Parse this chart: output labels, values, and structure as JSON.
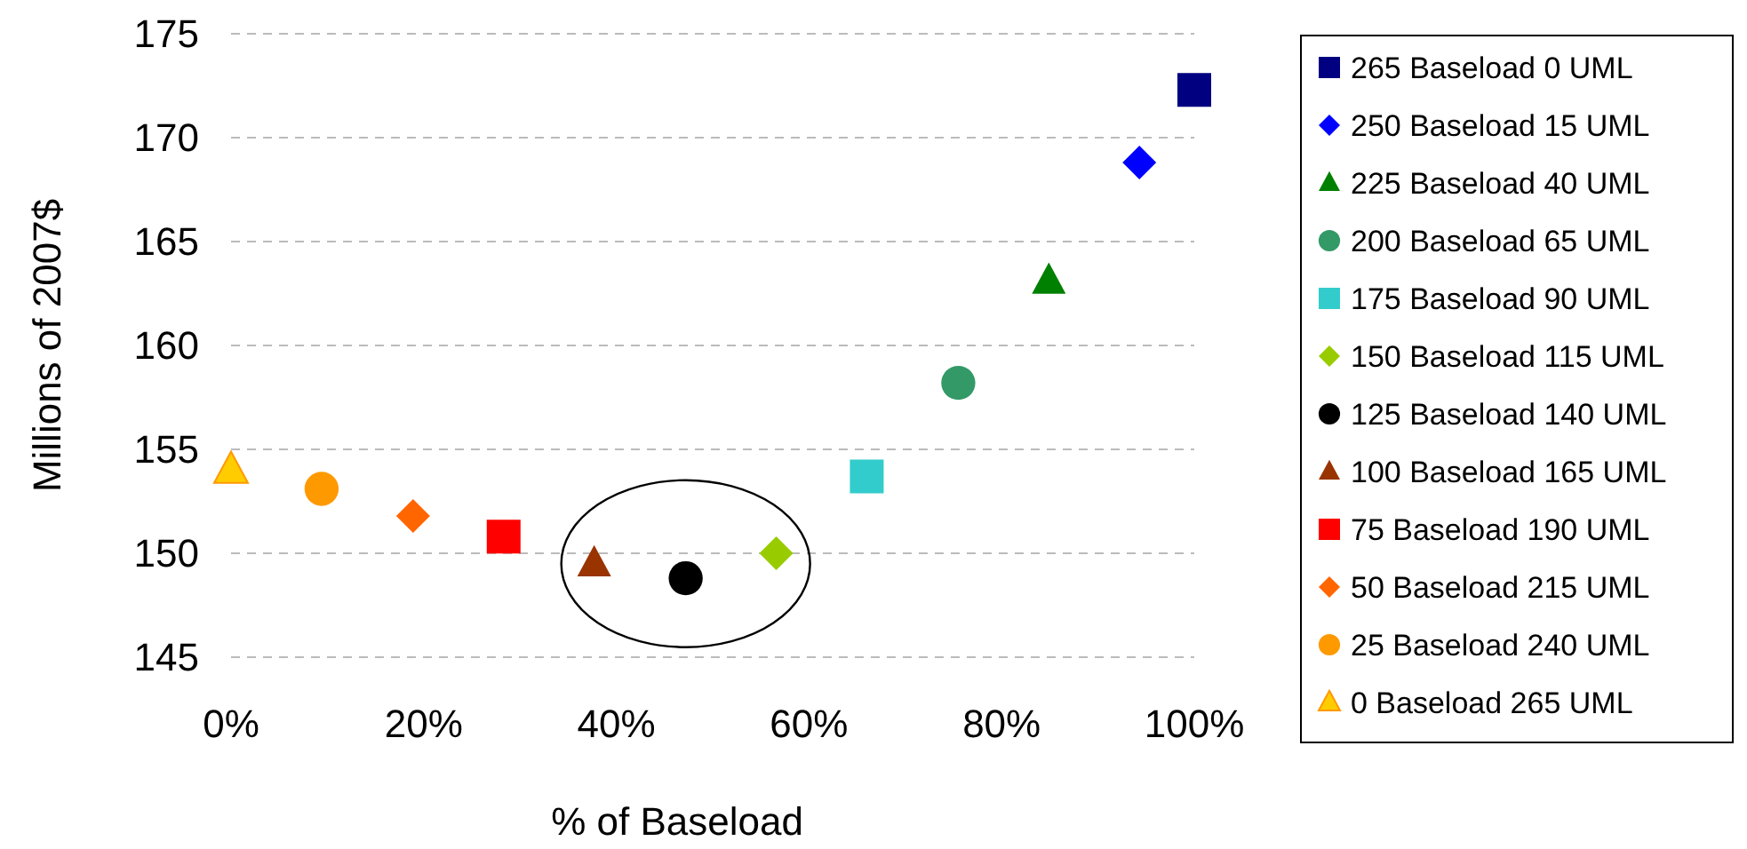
{
  "chart_data": {
    "type": "scatter",
    "xlabel": "% of Baseload",
    "ylabel": "Millions of 2007$",
    "xlim": [
      0,
      100
    ],
    "ylim": [
      145,
      175
    ],
    "xticks": [
      {
        "value": 0,
        "label": "0%"
      },
      {
        "value": 20,
        "label": "20%"
      },
      {
        "value": 40,
        "label": "40%"
      },
      {
        "value": 60,
        "label": "60%"
      },
      {
        "value": 80,
        "label": "80%"
      },
      {
        "value": 100,
        "label": "100%"
      }
    ],
    "yticks": [
      145,
      150,
      155,
      160,
      165,
      170,
      175
    ],
    "grid": "y",
    "legend": "right",
    "series": [
      {
        "name": "265 Baseload 0 UML",
        "color": "#000080",
        "marker": "square",
        "x": [
          100
        ],
        "values": [
          172.3
        ]
      },
      {
        "name": "250 Baseload 15 UML",
        "color": "#0000ff",
        "marker": "diamond",
        "x": [
          94.3
        ],
        "values": [
          168.8
        ]
      },
      {
        "name": "225 Baseload 40 UML",
        "color": "#008000",
        "marker": "triangle",
        "x": [
          84.9
        ],
        "values": [
          163.1
        ]
      },
      {
        "name": "200 Baseload 65 UML",
        "color": "#339966",
        "marker": "circle",
        "x": [
          75.5
        ],
        "values": [
          158.2
        ]
      },
      {
        "name": "175 Baseload 90 UML",
        "color": "#33cccc",
        "marker": "square",
        "x": [
          66
        ],
        "values": [
          153.7
        ]
      },
      {
        "name": "150 Baseload 115 UML",
        "color": "#99cc00",
        "marker": "diamond",
        "x": [
          56.6
        ],
        "values": [
          150
        ]
      },
      {
        "name": "125 Baseload 140 UML",
        "color": "#000000",
        "marker": "circle",
        "x": [
          47.2
        ],
        "values": [
          148.8
        ]
      },
      {
        "name": "100 Baseload 165 UML",
        "color": "#993300",
        "marker": "triangle",
        "x": [
          37.7
        ],
        "values": [
          149.5
        ]
      },
      {
        "name": "75 Baseload 190 UML",
        "color": "#ff0000",
        "marker": "square",
        "x": [
          28.3
        ],
        "values": [
          150.8
        ]
      },
      {
        "name": "50 Baseload 215 UML",
        "color": "#ff6600",
        "marker": "diamond",
        "x": [
          18.9
        ],
        "values": [
          151.8
        ]
      },
      {
        "name": "25 Baseload 240 UML",
        "color": "#ff9900",
        "marker": "circle",
        "x": [
          9.4
        ],
        "values": [
          153.1
        ]
      },
      {
        "name": "0 Baseload 265 UML",
        "color": "#ffcc00",
        "marker": "triangle",
        "x": [
          0
        ],
        "values": [
          154
        ]
      }
    ]
  }
}
